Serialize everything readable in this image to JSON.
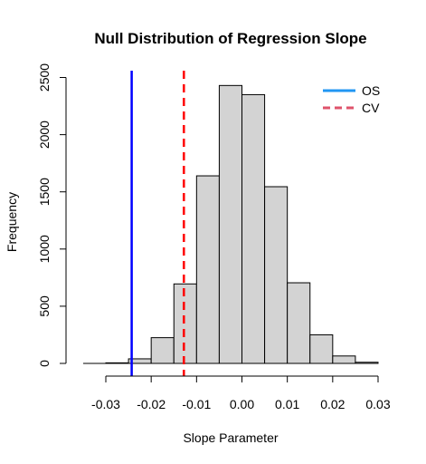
{
  "chart_data": {
    "type": "bar",
    "title": "Null Distribution of Regression Slope",
    "xlabel": "Slope Parameter",
    "ylabel": "Frequency",
    "xlim": [
      -0.035,
      0.03
    ],
    "ylim": [
      0,
      2500
    ],
    "x_ticks": [
      -0.03,
      -0.02,
      -0.01,
      0.0,
      0.01,
      0.02,
      0.03
    ],
    "x_tick_labels": [
      "-0.03",
      "-0.02",
      "-0.01",
      "0.00",
      "0.01",
      "0.02",
      "0.03"
    ],
    "y_ticks": [
      0,
      500,
      1000,
      1500,
      2000,
      2500
    ],
    "y_tick_labels": [
      "0",
      "500",
      "1000",
      "1500",
      "2000",
      "2500"
    ],
    "bins": [
      {
        "start": -0.03,
        "end": -0.025,
        "count": 5
      },
      {
        "start": -0.025,
        "end": -0.02,
        "count": 40
      },
      {
        "start": -0.02,
        "end": -0.015,
        "count": 225
      },
      {
        "start": -0.015,
        "end": -0.01,
        "count": 695
      },
      {
        "start": -0.01,
        "end": -0.005,
        "count": 1640
      },
      {
        "start": -0.005,
        "end": 0.0,
        "count": 2430
      },
      {
        "start": 0.0,
        "end": 0.005,
        "count": 2350
      },
      {
        "start": 0.005,
        "end": 0.01,
        "count": 1545
      },
      {
        "start": 0.01,
        "end": 0.015,
        "count": 705
      },
      {
        "start": 0.015,
        "end": 0.02,
        "count": 250
      },
      {
        "start": 0.02,
        "end": 0.025,
        "count": 65
      },
      {
        "start": 0.025,
        "end": 0.03,
        "count": 10
      }
    ],
    "bar_fill": "#d3d3d3",
    "bar_stroke": "#000000",
    "reference_lines": [
      {
        "name": "OS",
        "x": -0.0243,
        "color": "#0000ff",
        "style": "solid"
      },
      {
        "name": "CV",
        "x": -0.0128,
        "color": "#ff0000",
        "style": "dashed"
      }
    ],
    "legend": {
      "position": "top-right",
      "entries": [
        {
          "label": "OS",
          "color": "#2196f3",
          "style": "solid"
        },
        {
          "label": "CV",
          "color": "#df536b",
          "style": "dashed"
        }
      ]
    },
    "grid": false
  }
}
